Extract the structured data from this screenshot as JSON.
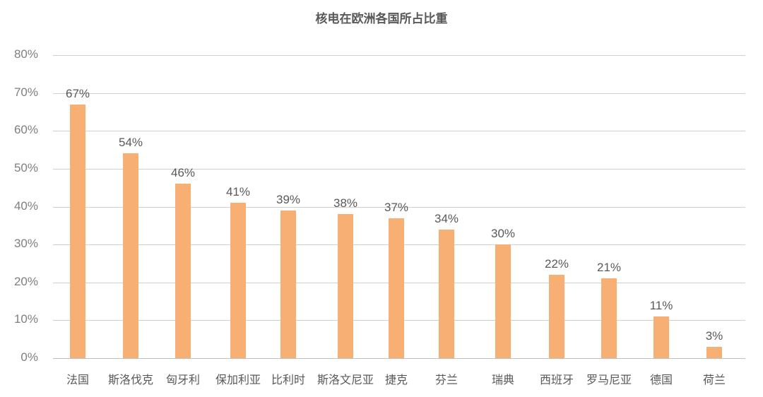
{
  "chart_data": {
    "type": "bar",
    "title": "核电在欧洲各国所占比重",
    "xlabel": "",
    "ylabel": "",
    "ylim": [
      0,
      80
    ],
    "y_ticks": [
      "0%",
      "10%",
      "20%",
      "30%",
      "40%",
      "50%",
      "60%",
      "70%",
      "80%"
    ],
    "grid": true,
    "legend": null,
    "bar_color": "#f8af74",
    "categories": [
      "法国",
      "斯洛伐克",
      "匈牙利",
      "保加利亚",
      "比利时",
      "斯洛文尼亚",
      "捷克",
      "芬兰",
      "瑞典",
      "西班牙",
      "罗马尼亚",
      "德国",
      "荷兰"
    ],
    "values": [
      67,
      54,
      46,
      41,
      39,
      38,
      37,
      34,
      30,
      22,
      21,
      11,
      3
    ],
    "data_labels": [
      "67%",
      "54%",
      "46%",
      "41%",
      "39%",
      "38%",
      "37%",
      "34%",
      "30%",
      "22%",
      "21%",
      "11%",
      "3%"
    ]
  }
}
